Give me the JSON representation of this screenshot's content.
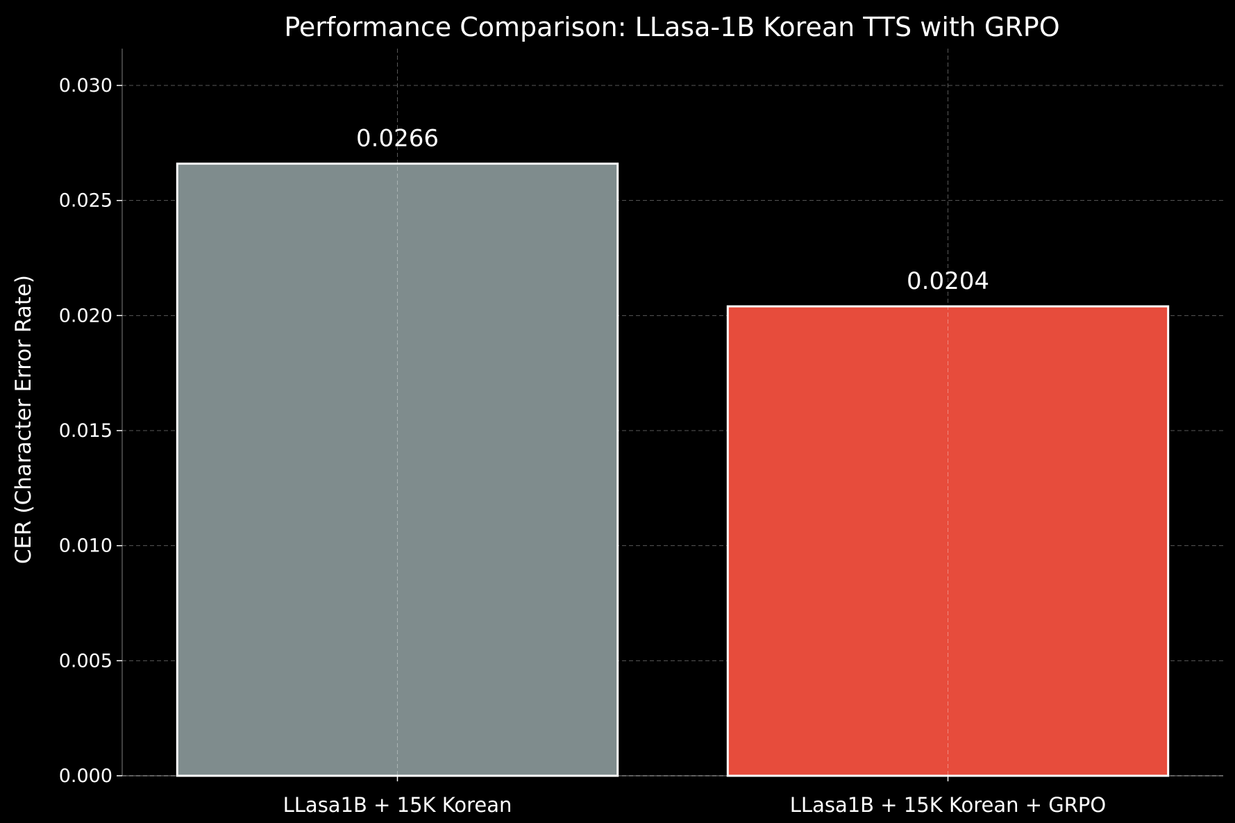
{
  "chart_data": {
    "type": "bar",
    "title": "Performance Comparison: LLasa-1B Korean TTS with GRPO",
    "xlabel": "",
    "ylabel": "CER (Character Error Rate)",
    "categories": [
      "LLasa1B + 15K Korean",
      "LLasa1B + 15K Korean + GRPO"
    ],
    "values": [
      0.0266,
      0.0204
    ],
    "value_labels": [
      "0.0266",
      "0.0204"
    ],
    "bar_colors": [
      "#7f8c8d",
      "#e74c3c"
    ],
    "ylim": [
      0,
      0.0316
    ],
    "yticks": [
      0.0,
      0.005,
      0.01,
      0.015,
      0.02,
      0.025,
      0.03
    ],
    "ytick_labels": [
      "0.000",
      "0.005",
      "0.010",
      "0.015",
      "0.020",
      "0.025",
      "0.030"
    ],
    "grid": true,
    "legend": "none",
    "background": "#000000",
    "edge_color": "#ffffff"
  }
}
